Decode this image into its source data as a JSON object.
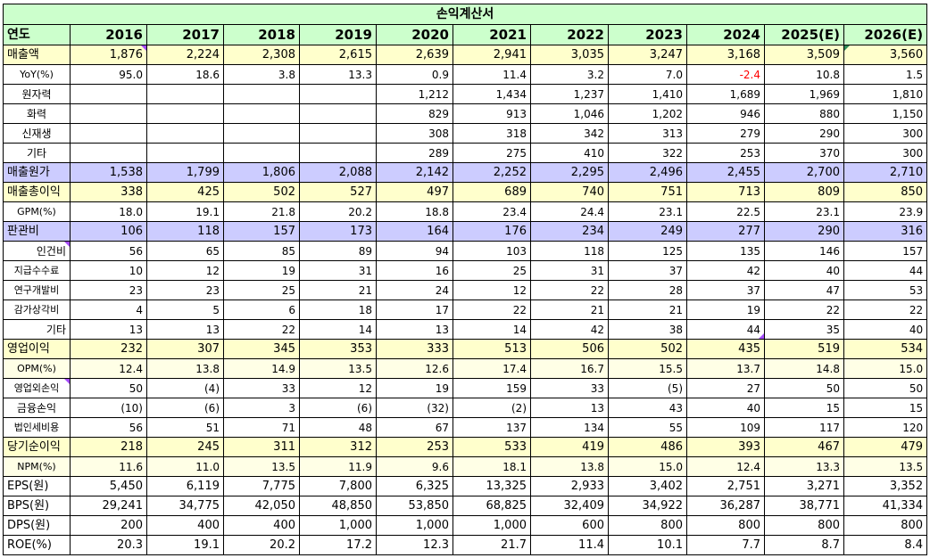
{
  "title": "손익계산서",
  "header": {
    "label": "연도",
    "years": [
      "2016",
      "2017",
      "2018",
      "2019",
      "2020",
      "2021",
      "2022",
      "2023",
      "2024",
      "2025(E)",
      "2026(E)"
    ]
  },
  "rows": [
    {
      "label": "매출액",
      "style": "hl-yellow",
      "align": "left",
      "values": [
        "1,876",
        "2,224",
        "2,308",
        "2,615",
        "2,639",
        "2,941",
        "3,035",
        "3,247",
        "3,168",
        "3,509",
        "3,560"
      ]
    },
    {
      "label": "YoY(%)",
      "style": "",
      "align": "center",
      "values": [
        "95.0",
        "18.6",
        "3.8",
        "13.3",
        "0.9",
        "11.4",
        "3.2",
        "7.0",
        "-2.4",
        "10.8",
        "1.5"
      ]
    },
    {
      "label": "원자력",
      "style": "",
      "align": "center",
      "values": [
        "",
        "",
        "",
        "",
        "1,212",
        "1,434",
        "1,237",
        "1,410",
        "1,689",
        "1,969",
        "1,810"
      ]
    },
    {
      "label": "화력",
      "style": "",
      "align": "center",
      "values": [
        "",
        "",
        "",
        "",
        "829",
        "913",
        "1,046",
        "1,202",
        "946",
        "880",
        "1,150"
      ]
    },
    {
      "label": "신재생",
      "style": "",
      "align": "center",
      "values": [
        "",
        "",
        "",
        "",
        "308",
        "318",
        "342",
        "313",
        "279",
        "290",
        "300"
      ]
    },
    {
      "label": "기타",
      "style": "",
      "align": "center",
      "values": [
        "",
        "",
        "",
        "",
        "289",
        "275",
        "410",
        "322",
        "253",
        "370",
        "300"
      ]
    },
    {
      "label": "매출원가",
      "style": "hl-purple",
      "align": "left",
      "values": [
        "1,538",
        "1,799",
        "1,806",
        "2,088",
        "2,142",
        "2,252",
        "2,295",
        "2,496",
        "2,455",
        "2,700",
        "2,710"
      ]
    },
    {
      "label": "매출총이익",
      "style": "hl-yellow",
      "align": "left",
      "values": [
        "338",
        "425",
        "502",
        "527",
        "497",
        "689",
        "740",
        "751",
        "713",
        "809",
        "850"
      ]
    },
    {
      "label": "GPM(%)",
      "style": "",
      "align": "center",
      "values": [
        "18.0",
        "19.1",
        "21.8",
        "20.2",
        "18.8",
        "23.4",
        "24.4",
        "23.1",
        "22.5",
        "23.1",
        "23.9"
      ]
    },
    {
      "label": "판관비",
      "style": "hl-purple",
      "align": "left",
      "values": [
        "106",
        "118",
        "157",
        "173",
        "164",
        "176",
        "234",
        "249",
        "277",
        "290",
        "316"
      ]
    },
    {
      "label": "인건비",
      "style": "",
      "align": "right",
      "values": [
        "56",
        "65",
        "85",
        "89",
        "94",
        "103",
        "118",
        "125",
        "135",
        "146",
        "157"
      ]
    },
    {
      "label": "지급수수료",
      "style": "",
      "align": "center",
      "values": [
        "10",
        "12",
        "19",
        "31",
        "16",
        "25",
        "31",
        "37",
        "42",
        "40",
        "44"
      ]
    },
    {
      "label": "연구개발비",
      "style": "",
      "align": "center",
      "values": [
        "23",
        "23",
        "25",
        "21",
        "24",
        "12",
        "22",
        "28",
        "37",
        "47",
        "53"
      ]
    },
    {
      "label": "감가상각비",
      "style": "",
      "align": "center",
      "values": [
        "4",
        "5",
        "6",
        "18",
        "17",
        "22",
        "21",
        "21",
        "19",
        "22",
        "22"
      ]
    },
    {
      "label": "기타",
      "style": "",
      "align": "right",
      "values": [
        "13",
        "13",
        "22",
        "14",
        "13",
        "14",
        "42",
        "38",
        "44",
        "35",
        "40"
      ]
    },
    {
      "label": "영업이익",
      "style": "hl-yellow",
      "align": "left",
      "values": [
        "232",
        "307",
        "345",
        "353",
        "333",
        "513",
        "506",
        "502",
        "435",
        "519",
        "534"
      ]
    },
    {
      "label": "OPM(%)",
      "style": "hl-light",
      "align": "center",
      "values": [
        "12.4",
        "13.8",
        "14.9",
        "13.5",
        "12.6",
        "17.4",
        "16.7",
        "15.5",
        "13.7",
        "14.8",
        "15.0"
      ]
    },
    {
      "label": "영업외손익",
      "style": "",
      "align": "center",
      "values": [
        "50",
        "(4)",
        "33",
        "12",
        "19",
        "159",
        "33",
        "(5)",
        "27",
        "50",
        "50"
      ]
    },
    {
      "label": "금융손익",
      "style": "",
      "align": "center",
      "values": [
        "(10)",
        "(6)",
        "3",
        "(6)",
        "(32)",
        "(2)",
        "13",
        "43",
        "40",
        "15",
        "15"
      ]
    },
    {
      "label": "법인세비용",
      "style": "",
      "align": "center",
      "values": [
        "56",
        "51",
        "71",
        "48",
        "67",
        "137",
        "134",
        "55",
        "109",
        "117",
        "120"
      ]
    },
    {
      "label": "당기순이익",
      "style": "hl-yellow",
      "align": "left",
      "values": [
        "218",
        "245",
        "311",
        "312",
        "253",
        "533",
        "419",
        "486",
        "393",
        "467",
        "479"
      ]
    },
    {
      "label": "NPM(%)",
      "style": "hl-light",
      "align": "center",
      "values": [
        "11.6",
        "11.0",
        "13.5",
        "11.9",
        "9.6",
        "18.1",
        "13.8",
        "15.0",
        "12.4",
        "13.3",
        "13.5"
      ]
    },
    {
      "label": "EPS(원)",
      "style": "big",
      "align": "left",
      "values": [
        "5,450",
        "6,119",
        "7,775",
        "7,800",
        "6,325",
        "13,325",
        "2,933",
        "3,402",
        "2,751",
        "3,271",
        "3,352"
      ]
    },
    {
      "label": "BPS(원)",
      "style": "big",
      "align": "left",
      "values": [
        "29,241",
        "34,775",
        "42,050",
        "48,850",
        "53,850",
        "68,825",
        "32,409",
        "34,922",
        "36,287",
        "38,771",
        "41,334"
      ]
    },
    {
      "label": "DPS(원)",
      "style": "big",
      "align": "left",
      "values": [
        "200",
        "400",
        "400",
        "1,000",
        "1,000",
        "1,000",
        "600",
        "800",
        "800",
        "800",
        "800"
      ]
    },
    {
      "label": "ROE(%)",
      "style": "big",
      "align": "left",
      "values": [
        "20.3",
        "19.1",
        "20.2",
        "17.2",
        "12.3",
        "21.7",
        "11.4",
        "10.1",
        "7.7",
        "8.7",
        "8.4"
      ]
    }
  ],
  "colors": {
    "negative": "#ff0000",
    "header_bg": "#ccffcc",
    "yellow_bg": "#ffffcc",
    "purple_bg": "#ccccff"
  }
}
